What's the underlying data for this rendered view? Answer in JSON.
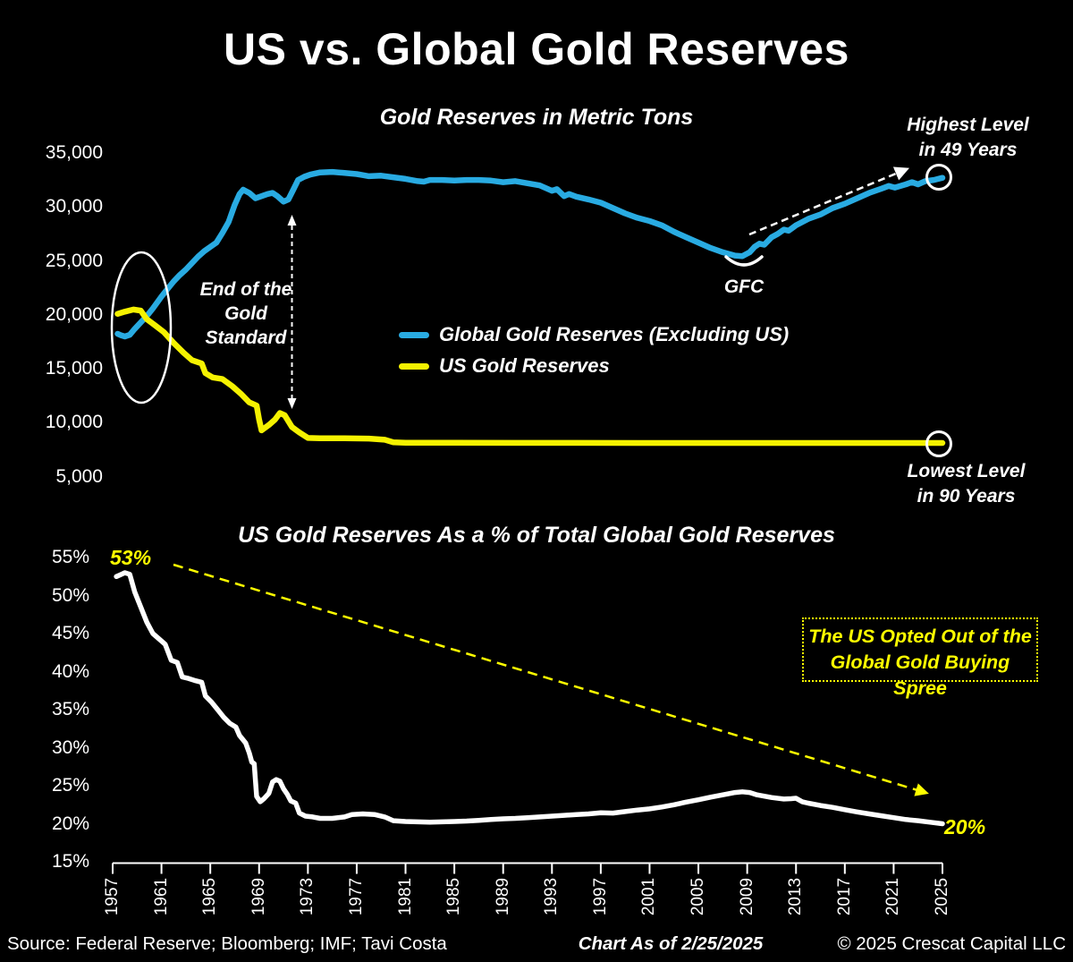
{
  "page": {
    "title": "US vs. Global Gold Reserves",
    "background": "#000000",
    "text_color": "#ffffff",
    "accent_yellow": "#ffff00"
  },
  "chart_data": [
    {
      "type": "line",
      "title": "Gold Reserves in Metric Tons",
      "ylabel": "Gold Reserves in Metric Tons",
      "yticks": [
        "35,000",
        "30,000",
        "25,000",
        "20,000",
        "15,000",
        "10,000",
        "5,000"
      ],
      "ytick_values": [
        35000,
        30000,
        25000,
        20000,
        15000,
        10000,
        5000
      ],
      "ylim": [
        2500,
        36500
      ],
      "xlim": [
        1957,
        2025
      ],
      "grid": false,
      "legend_position": "center-left inside plot",
      "series": [
        {
          "name": "Global Gold Reserves (Excluding US)",
          "color": "#29abe2",
          "points": [
            [
              1957.4,
              18250
            ],
            [
              1957.7,
              18100
            ],
            [
              1958,
              18000
            ],
            [
              1958.4,
              18150
            ],
            [
              1958.8,
              18700
            ],
            [
              1959.3,
              19300
            ],
            [
              1959.8,
              19900
            ],
            [
              1960.3,
              20600
            ],
            [
              1961,
              21700
            ],
            [
              1961.5,
              22400
            ],
            [
              1962,
              23100
            ],
            [
              1962.5,
              23700
            ],
            [
              1963,
              24200
            ],
            [
              1963.5,
              24800
            ],
            [
              1964,
              25400
            ],
            [
              1964.5,
              25900
            ],
            [
              1965,
              26300
            ],
            [
              1965.5,
              26700
            ],
            [
              1966,
              27600
            ],
            [
              1966.5,
              28600
            ],
            [
              1967,
              30200
            ],
            [
              1967.4,
              31200
            ],
            [
              1967.7,
              31600
            ],
            [
              1968.2,
              31300
            ],
            [
              1968.7,
              30800
            ],
            [
              1969.2,
              31000
            ],
            [
              1969.7,
              31200
            ],
            [
              1970.1,
              31300
            ],
            [
              1970.5,
              31000
            ],
            [
              1971,
              30500
            ],
            [
              1971.4,
              30700
            ],
            [
              1971.8,
              31600
            ],
            [
              1972.2,
              32500
            ],
            [
              1972.7,
              32800
            ],
            [
              1973.2,
              33000
            ],
            [
              1974,
              33200
            ],
            [
              1975,
              33250
            ],
            [
              1976,
              33150
            ],
            [
              1977,
              33050
            ],
            [
              1977.5,
              32950
            ],
            [
              1978,
              32850
            ],
            [
              1979,
              32900
            ],
            [
              1980,
              32750
            ],
            [
              1981,
              32600
            ],
            [
              1982,
              32400
            ],
            [
              1982.5,
              32350
            ],
            [
              1983,
              32500
            ],
            [
              1984,
              32500
            ],
            [
              1985,
              32450
            ],
            [
              1986,
              32500
            ],
            [
              1987,
              32500
            ],
            [
              1988,
              32450
            ],
            [
              1989,
              32300
            ],
            [
              1990,
              32400
            ],
            [
              1991,
              32200
            ],
            [
              1992,
              32000
            ],
            [
              1993,
              31500
            ],
            [
              1993.4,
              31650
            ],
            [
              1994,
              31000
            ],
            [
              1994.4,
              31200
            ],
            [
              1995,
              30950
            ],
            [
              1996,
              30700
            ],
            [
              1997,
              30400
            ],
            [
              1998,
              29900
            ],
            [
              1999,
              29400
            ],
            [
              2000,
              29000
            ],
            [
              2001,
              28700
            ],
            [
              2002,
              28300
            ],
            [
              2003,
              27700
            ],
            [
              2004,
              27200
            ],
            [
              2005,
              26700
            ],
            [
              2006,
              26200
            ],
            [
              2007,
              25800
            ],
            [
              2008,
              25500
            ],
            [
              2008.6,
              25450
            ],
            [
              2009.2,
              25800
            ],
            [
              2009.6,
              26300
            ],
            [
              2010,
              26600
            ],
            [
              2010.4,
              26500
            ],
            [
              2011,
              27200
            ],
            [
              2011.5,
              27500
            ],
            [
              2012,
              27900
            ],
            [
              2012.4,
              27800
            ],
            [
              2013,
              28300
            ],
            [
              2014,
              28900
            ],
            [
              2015,
              29300
            ],
            [
              2016,
              29900
            ],
            [
              2017,
              30300
            ],
            [
              2018,
              30800
            ],
            [
              2019,
              31300
            ],
            [
              2020,
              31700
            ],
            [
              2020.6,
              31950
            ],
            [
              2021.1,
              31800
            ],
            [
              2022,
              32100
            ],
            [
              2022.5,
              32300
            ],
            [
              2023,
              32100
            ],
            [
              2023.6,
              32400
            ],
            [
              2024.3,
              32500
            ],
            [
              2025,
              32700
            ]
          ]
        },
        {
          "name": "US Gold Reserves",
          "color": "#f5f200",
          "points": [
            [
              1957.4,
              20100
            ],
            [
              1958,
              20300
            ],
            [
              1958.7,
              20500
            ],
            [
              1959.3,
              20400
            ],
            [
              1959.8,
              19600
            ],
            [
              1960.5,
              19000
            ],
            [
              1961.2,
              18400
            ],
            [
              1962,
              17400
            ],
            [
              1962.8,
              16500
            ],
            [
              1963.5,
              15800
            ],
            [
              1964.3,
              15500
            ],
            [
              1964.6,
              14600
            ],
            [
              1965.2,
              14200
            ],
            [
              1966,
              14050
            ],
            [
              1966.8,
              13400
            ],
            [
              1967.5,
              12700
            ],
            [
              1968.2,
              11900
            ],
            [
              1968.8,
              11600
            ],
            [
              1969,
              10300
            ],
            [
              1969.2,
              9300
            ],
            [
              1969.8,
              9800
            ],
            [
              1970.3,
              10300
            ],
            [
              1970.7,
              10900
            ],
            [
              1971.1,
              10700
            ],
            [
              1971.7,
              9600
            ],
            [
              1972.3,
              9100
            ],
            [
              1973,
              8600
            ],
            [
              1974,
              8560
            ],
            [
              1976,
              8560
            ],
            [
              1978,
              8540
            ],
            [
              1979.3,
              8430
            ],
            [
              1980,
              8200
            ],
            [
              1981,
              8150
            ],
            [
              1985,
              8145
            ],
            [
              1990,
              8140
            ],
            [
              1995,
              8138
            ],
            [
              2000,
              8136
            ],
            [
              2005,
              8135
            ],
            [
              2010,
              8134
            ],
            [
              2015,
              8133
            ],
            [
              2020,
              8133
            ],
            [
              2025,
              8133
            ]
          ]
        }
      ]
    },
    {
      "type": "line",
      "title": "US Gold Reserves As a % of Total Global Gold Reserves",
      "yticks": [
        "55%",
        "50%",
        "45%",
        "40%",
        "35%",
        "30%",
        "25%",
        "20%",
        "15%"
      ],
      "ytick_values": [
        55,
        50,
        45,
        40,
        35,
        30,
        25,
        20,
        15
      ],
      "xticks": [
        "1957",
        "1961",
        "1965",
        "1969",
        "1973",
        "1977",
        "1981",
        "1985",
        "1989",
        "1993",
        "1997",
        "2001",
        "2005",
        "2009",
        "2013",
        "2017",
        "2021",
        "2025"
      ],
      "xtick_values": [
        1957,
        1961,
        1965,
        1969,
        1973,
        1977,
        1981,
        1985,
        1989,
        1993,
        1997,
        2001,
        2005,
        2009,
        2013,
        2017,
        2021,
        2025
      ],
      "ylim": [
        15,
        55
      ],
      "xlim": [
        1957,
        2025
      ],
      "grid": false,
      "series": [
        {
          "name": "US Gold Reserves as % of Total Global Gold Reserves",
          "color": "#ffffff",
          "points": [
            [
              1957.3,
              52.5
            ],
            [
              1957.6,
              52.7
            ],
            [
              1958,
              53
            ],
            [
              1958.4,
              52.8
            ],
            [
              1958.8,
              50.5
            ],
            [
              1959.3,
              48.5
            ],
            [
              1959.8,
              46.5
            ],
            [
              1960.3,
              45
            ],
            [
              1960.8,
              44.3
            ],
            [
              1961.3,
              43.6
            ],
            [
              1961.8,
              41.5
            ],
            [
              1962.3,
              41.2
            ],
            [
              1962.7,
              39.3
            ],
            [
              1963.2,
              39.1
            ],
            [
              1963.8,
              38.8
            ],
            [
              1964.3,
              38.6
            ],
            [
              1964.6,
              36.8
            ],
            [
              1965.1,
              36
            ],
            [
              1965.6,
              35
            ],
            [
              1966.1,
              34
            ],
            [
              1966.6,
              33.2
            ],
            [
              1967.1,
              32.7
            ],
            [
              1967.4,
              31.6
            ],
            [
              1967.9,
              30.6
            ],
            [
              1968.2,
              29.3
            ],
            [
              1968.4,
              28.1
            ],
            [
              1968.6,
              27.9
            ],
            [
              1968.8,
              23.6
            ],
            [
              1969.1,
              22.9
            ],
            [
              1969.4,
              23.3
            ],
            [
              1969.8,
              24
            ],
            [
              1970.1,
              25.5
            ],
            [
              1970.4,
              25.8
            ],
            [
              1970.7,
              25.6
            ],
            [
              1971,
              24.6
            ],
            [
              1971.3,
              23.9
            ],
            [
              1971.6,
              23
            ],
            [
              1972,
              22.7
            ],
            [
              1972.3,
              21.4
            ],
            [
              1972.8,
              21
            ],
            [
              1973.4,
              20.9
            ],
            [
              1974,
              20.7
            ],
            [
              1975,
              20.7
            ],
            [
              1976,
              20.9
            ],
            [
              1976.6,
              21.2
            ],
            [
              1977.5,
              21.3
            ],
            [
              1978.5,
              21.2
            ],
            [
              1979.3,
              20.9
            ],
            [
              1980,
              20.4
            ],
            [
              1981,
              20.3
            ],
            [
              1982,
              20.25
            ],
            [
              1983,
              20.2
            ],
            [
              1984,
              20.25
            ],
            [
              1985,
              20.3
            ],
            [
              1986,
              20.35
            ],
            [
              1987,
              20.45
            ],
            [
              1988,
              20.55
            ],
            [
              1989,
              20.65
            ],
            [
              1990,
              20.7
            ],
            [
              1991,
              20.8
            ],
            [
              1992,
              20.9
            ],
            [
              1993,
              21
            ],
            [
              1994,
              21.1
            ],
            [
              1995,
              21.2
            ],
            [
              1996,
              21.3
            ],
            [
              1997,
              21.45
            ],
            [
              1998,
              21.4
            ],
            [
              1999,
              21.6
            ],
            [
              2000,
              21.8
            ],
            [
              2001,
              21.95
            ],
            [
              2002,
              22.2
            ],
            [
              2003,
              22.5
            ],
            [
              2004,
              22.85
            ],
            [
              2005,
              23.15
            ],
            [
              2006,
              23.5
            ],
            [
              2007,
              23.8
            ],
            [
              2008,
              24.1
            ],
            [
              2008.6,
              24.2
            ],
            [
              2009.2,
              24.1
            ],
            [
              2009.8,
              23.8
            ],
            [
              2010.5,
              23.6
            ],
            [
              2011,
              23.45
            ],
            [
              2012,
              23.25
            ],
            [
              2012.6,
              23.3
            ],
            [
              2013,
              23.35
            ],
            [
              2013.5,
              22.9
            ],
            [
              2014,
              22.7
            ],
            [
              2015,
              22.4
            ],
            [
              2016,
              22.15
            ],
            [
              2017,
              21.85
            ],
            [
              2018,
              21.55
            ],
            [
              2019,
              21.3
            ],
            [
              2020,
              21.05
            ],
            [
              2021,
              20.8
            ],
            [
              2022,
              20.55
            ],
            [
              2023,
              20.4
            ],
            [
              2024,
              20.2
            ],
            [
              2025,
              20
            ]
          ]
        }
      ]
    }
  ],
  "annotations": {
    "end_gold_standard_lines": [
      "End of the",
      "Gold",
      "Standard"
    ],
    "gfc": "GFC",
    "highest_lines": [
      "Highest Level",
      "in 49 Years"
    ],
    "lowest_lines": [
      "Lowest Level",
      "in 90 Years"
    ],
    "start_pct": "53%",
    "end_pct": "20%",
    "callout_box_lines": [
      "The US Opted Out of the",
      "Global Gold Buying Spree"
    ]
  },
  "footer": {
    "source": "Source: Federal Reserve; Bloomberg; IMF; Tavi Costa",
    "as_of": "Chart As of 2/25/2025",
    "copyright": "© 2025 Crescat Capital LLC"
  }
}
